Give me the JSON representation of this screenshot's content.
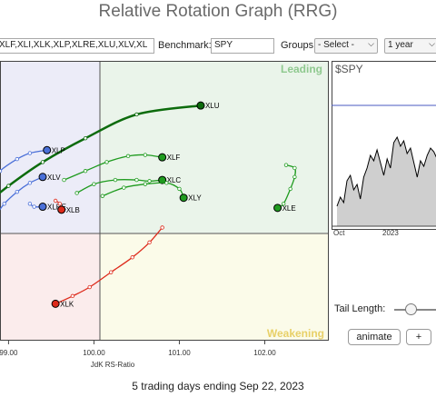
{
  "page_title": "Relative Rotation Graph (RRG)",
  "controls": {
    "symbols_value": "XLF,XLI,XLK,XLP,XLRE,XLU,XLV,XL",
    "benchmark_label": "Benchmark:",
    "benchmark_value": "SPY",
    "groups_label": "Groups:",
    "groups_value": "- Select -",
    "period_value": "1 year"
  },
  "quadrant_labels": {
    "leading": "Leading",
    "weakening": "Weakening"
  },
  "colors": {
    "leading_bg": "#eaf4ea",
    "weakening_bg": "#fbfbe9",
    "lagging_bg": "#fbecec",
    "improving_bg": "#ececf8",
    "green": "#1f9b1f",
    "dark_green": "#0c6b0c",
    "blue": "#4a6fd8",
    "red": "#dd2a1b"
  },
  "footer": {
    "x_axis_label": "JdK RS-Ratio",
    "status": "5 trading days ending Sep 22, 2023"
  },
  "side_panel": {
    "title": "$SPY",
    "x_ticks": [
      "Oct",
      "2023",
      ""
    ],
    "tail_length_label": "Tail Length:",
    "animate_label": "animate",
    "plus_label": "+"
  },
  "chart_data": {
    "type": "scatter",
    "xlabel": "JdK RS-Ratio",
    "x_ticks": [
      99.0,
      100.0,
      101.0,
      102.0
    ],
    "x_tick_labels": [
      "99.00",
      "100.00",
      "101.00",
      "102.00"
    ],
    "xlim": [
      98.9,
      102.75
    ],
    "ylim": [
      97.8,
      102.5
    ],
    "center": [
      100.0,
      100.0
    ],
    "series": [
      {
        "name": "XLU",
        "color": "#0c6b0c",
        "points": [
          [
            98.5,
            99.8
          ],
          [
            98.7,
            100.05
          ],
          [
            99.0,
            100.4
          ],
          [
            99.4,
            100.8
          ],
          [
            99.9,
            101.2
          ],
          [
            100.5,
            101.6
          ],
          [
            101.25,
            101.75
          ]
        ]
      },
      {
        "name": "XLF",
        "color": "#1f9b1f",
        "points": [
          [
            99.65,
            100.5
          ],
          [
            99.9,
            100.65
          ],
          [
            100.15,
            100.8
          ],
          [
            100.4,
            100.9
          ],
          [
            100.6,
            100.92
          ],
          [
            100.8,
            100.88
          ]
        ]
      },
      {
        "name": "XLC",
        "color": "#1f9b1f",
        "points": [
          [
            99.8,
            100.28
          ],
          [
            100.0,
            100.43
          ],
          [
            100.25,
            100.5
          ],
          [
            100.5,
            100.5
          ],
          [
            100.65,
            100.48
          ],
          [
            100.8,
            100.5
          ]
        ]
      },
      {
        "name": "XLY",
        "color": "#1f9b1f",
        "points": [
          [
            100.1,
            100.23
          ],
          [
            100.35,
            100.37
          ],
          [
            100.6,
            100.43
          ],
          [
            100.85,
            100.45
          ],
          [
            101.0,
            100.35
          ],
          [
            101.05,
            100.2
          ]
        ]
      },
      {
        "name": "XLE",
        "color": "#1f9b1f",
        "points": [
          [
            102.25,
            100.75
          ],
          [
            102.35,
            100.7
          ],
          [
            102.35,
            100.55
          ],
          [
            102.3,
            100.35
          ],
          [
            102.22,
            100.1
          ],
          [
            102.15,
            100.03
          ]
        ]
      },
      {
        "name": "XLP",
        "color": "#4a6fd8",
        "points": [
          [
            98.75,
            100.4
          ],
          [
            98.9,
            100.65
          ],
          [
            99.1,
            100.85
          ],
          [
            99.25,
            100.95
          ],
          [
            99.45,
            101.0
          ]
        ]
      },
      {
        "name": "XLV",
        "color": "#4a6fd8",
        "points": [
          [
            98.85,
            99.9
          ],
          [
            98.95,
            100.1
          ],
          [
            99.1,
            100.3
          ],
          [
            99.25,
            100.45
          ],
          [
            99.4,
            100.55
          ]
        ]
      },
      {
        "name": "XLRE",
        "color": "#4a6fd8",
        "points": [
          [
            99.25,
            100.1
          ],
          [
            99.3,
            100.05
          ],
          [
            99.4,
            100.05
          ]
        ]
      },
      {
        "name": "XLB",
        "color": "#dd2a1b",
        "points": [
          [
            99.55,
            100.15
          ],
          [
            99.6,
            100.1
          ],
          [
            99.62,
            100.0
          ]
        ]
      },
      {
        "name": "XLK",
        "color": "#dd2a1b",
        "points": [
          [
            100.8,
            99.7
          ],
          [
            100.65,
            99.45
          ],
          [
            100.45,
            99.2
          ],
          [
            100.2,
            98.95
          ],
          [
            99.95,
            98.7
          ],
          [
            99.75,
            98.55
          ],
          [
            99.55,
            98.42
          ]
        ]
      }
    ]
  }
}
